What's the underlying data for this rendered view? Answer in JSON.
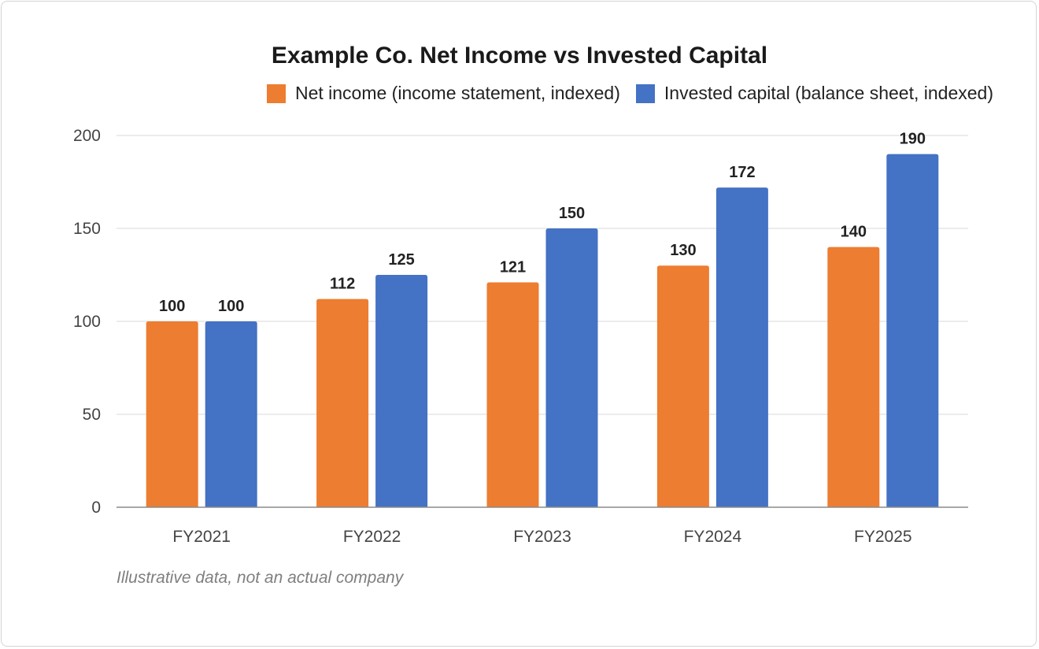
{
  "chart_data": {
    "type": "bar",
    "title": "Example Co. Net Income vs Invested Capital",
    "categories": [
      "FY2021",
      "FY2022",
      "FY2023",
      "FY2024",
      "FY2025"
    ],
    "series": [
      {
        "name": "Net income (income statement, indexed)",
        "color": "#ED7D31",
        "values": [
          100,
          112,
          121,
          130,
          140
        ]
      },
      {
        "name": "Invested capital (balance sheet, indexed)",
        "color": "#4472C4",
        "values": [
          100,
          125,
          150,
          172,
          190
        ]
      }
    ],
    "ylim": [
      0,
      200
    ],
    "yticks": [
      0,
      50,
      100,
      150,
      200
    ],
    "grid": true,
    "legend_position": "top-right",
    "data_labels": true
  },
  "note": "Illustrative data, not an actual company"
}
